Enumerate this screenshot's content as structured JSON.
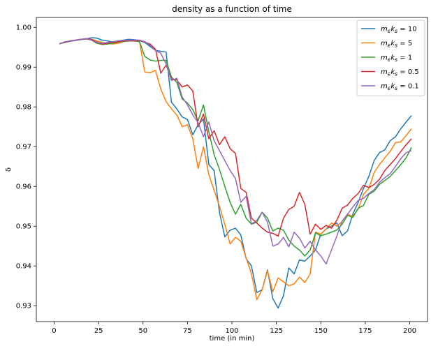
{
  "chart_data": {
    "type": "line",
    "title": "density as a function of time",
    "xlabel": "time (in min)",
    "ylabel": "δ",
    "xlim": [
      -10,
      210
    ],
    "ylim": [
      0.926,
      1.0025
    ],
    "xticks": [
      0,
      25,
      50,
      75,
      100,
      125,
      150,
      175,
      200
    ],
    "yticks": [
      0.93,
      0.94,
      0.95,
      0.96,
      0.97,
      0.98,
      0.99,
      1.0
    ],
    "ytick_labels": [
      "0.93",
      "0.94",
      "0.95",
      "0.96",
      "0.97",
      "0.98",
      "0.99",
      "1.00"
    ],
    "grid": false,
    "legend_position": "top-right",
    "x": [
      3,
      6,
      9,
      12,
      15,
      18,
      21,
      24,
      27,
      30,
      33,
      36,
      39,
      42,
      45,
      48,
      51,
      54,
      57,
      60,
      63,
      66,
      69,
      72,
      75,
      78,
      81,
      84,
      87,
      90,
      93,
      96,
      99,
      102,
      105,
      108,
      111,
      114,
      117,
      120,
      123,
      126,
      129,
      132,
      135,
      138,
      141,
      144,
      147,
      150,
      153,
      156,
      159,
      162,
      165,
      168,
      171,
      174,
      177,
      180,
      183,
      186,
      189,
      192,
      195,
      198,
      201
    ],
    "series": [
      {
        "name_prefix": "m",
        "name_sub1": "ϵ",
        "name_mid": "k",
        "name_sub2": "s",
        "name_value": " = 10",
        "color": "#1f77b4",
        "values": [
          0.9959,
          0.9962,
          0.9965,
          0.9967,
          0.9969,
          0.9971,
          0.9974,
          0.9973,
          0.9968,
          0.9966,
          0.9963,
          0.9966,
          0.9968,
          0.997,
          0.9969,
          0.9967,
          0.9962,
          0.9952,
          0.9942,
          0.994,
          0.9938,
          0.9812,
          0.9795,
          0.9775,
          0.9768,
          0.973,
          0.9755,
          0.977,
          0.9655,
          0.964,
          0.9535,
          0.9473,
          0.949,
          0.9495,
          0.9478,
          0.9418,
          0.94,
          0.9333,
          0.934,
          0.939,
          0.9318,
          0.9294,
          0.9325,
          0.9395,
          0.938,
          0.9415,
          0.9412,
          0.9425,
          0.944,
          0.948,
          0.9493,
          0.95,
          0.9508,
          0.9476,
          0.9488,
          0.953,
          0.956,
          0.9595,
          0.9625,
          0.9665,
          0.9685,
          0.9692,
          0.9715,
          0.9725,
          0.9745,
          0.9762,
          0.9778
        ]
      },
      {
        "name_prefix": "m",
        "name_sub1": "ϵ",
        "name_mid": "k",
        "name_sub2": "s",
        "name_value": " = 5",
        "color": "#ff7f0e",
        "values": [
          0.9959,
          0.9962,
          0.9966,
          0.9968,
          0.997,
          0.9971,
          0.997,
          0.9966,
          0.9962,
          0.996,
          0.9958,
          0.996,
          0.9964,
          0.9966,
          0.9966,
          0.9965,
          0.9888,
          0.9886,
          0.9892,
          0.9845,
          0.9813,
          0.9795,
          0.978,
          0.975,
          0.9755,
          0.972,
          0.9645,
          0.97,
          0.963,
          0.959,
          0.955,
          0.9505,
          0.9455,
          0.9472,
          0.9462,
          0.942,
          0.938,
          0.9315,
          0.934,
          0.9388,
          0.9335,
          0.937,
          0.936,
          0.935,
          0.9355,
          0.9372,
          0.9358,
          0.938,
          0.9485,
          0.948,
          0.9493,
          0.9508,
          0.95,
          0.9512,
          0.953,
          0.9525,
          0.9543,
          0.958,
          0.9595,
          0.9635,
          0.9655,
          0.9672,
          0.9688,
          0.971,
          0.9712,
          0.9728,
          0.9745
        ]
      },
      {
        "name_prefix": "m",
        "name_sub1": "ϵ",
        "name_mid": "k",
        "name_sub2": "s",
        "name_value": " = 1",
        "color": "#2ca02c",
        "values": [
          0.9959,
          0.9962,
          0.9965,
          0.9968,
          0.997,
          0.9971,
          0.9968,
          0.996,
          0.9957,
          0.9958,
          0.996,
          0.9963,
          0.9965,
          0.9966,
          0.9966,
          0.9964,
          0.9927,
          0.9918,
          0.9915,
          0.9917,
          0.9917,
          0.9875,
          0.9862,
          0.982,
          0.981,
          0.9793,
          0.9765,
          0.9805,
          0.9738,
          0.968,
          0.9643,
          0.96,
          0.956,
          0.953,
          0.9555,
          0.952,
          0.9505,
          0.951,
          0.9535,
          0.952,
          0.9488,
          0.9495,
          0.949,
          0.9465,
          0.945,
          0.944,
          0.9425,
          0.944,
          0.9483,
          0.9476,
          0.948,
          0.9485,
          0.949,
          0.9505,
          0.9527,
          0.9522,
          0.9545,
          0.9552,
          0.958,
          0.9588,
          0.9605,
          0.9615,
          0.9625,
          0.964,
          0.9655,
          0.9672,
          0.9698
        ]
      },
      {
        "name_prefix": "m",
        "name_sub1": "ϵ",
        "name_mid": "k",
        "name_sub2": "s",
        "name_value": " = 0.5",
        "color": "#d62728",
        "values": [
          0.9959,
          0.9963,
          0.9966,
          0.9968,
          0.997,
          0.9971,
          0.997,
          0.9963,
          0.9958,
          0.996,
          0.9962,
          0.9964,
          0.9966,
          0.9967,
          0.9966,
          0.9967,
          0.9963,
          0.9958,
          0.9945,
          0.9885,
          0.9905,
          0.987,
          0.9868,
          0.985,
          0.9855,
          0.984,
          0.975,
          0.9782,
          0.972,
          0.974,
          0.9705,
          0.9725,
          0.9695,
          0.9683,
          0.9595,
          0.9585,
          0.952,
          0.9508,
          0.9495,
          0.9485,
          0.9482,
          0.9475,
          0.952,
          0.9542,
          0.955,
          0.9585,
          0.9555,
          0.948,
          0.9505,
          0.9492,
          0.9502,
          0.9495,
          0.9515,
          0.9545,
          0.9553,
          0.957,
          0.9582,
          0.9603,
          0.9597,
          0.9605,
          0.9618,
          0.964,
          0.9655,
          0.967,
          0.9688,
          0.9705,
          0.972
        ]
      },
      {
        "name_prefix": "m",
        "name_sub1": "ϵ",
        "name_mid": "k",
        "name_sub2": "s",
        "name_value": " = 0.1",
        "color": "#9467bd",
        "values": [
          0.9958,
          0.9964,
          0.9965,
          0.9968,
          0.997,
          0.9972,
          0.9968,
          0.9962,
          0.996,
          0.9962,
          0.9964,
          0.9966,
          0.9967,
          0.9968,
          0.9968,
          0.9968,
          0.9964,
          0.9955,
          0.9942,
          0.9935,
          0.9908,
          0.9866,
          0.9872,
          0.9825,
          0.9805,
          0.978,
          0.976,
          0.9725,
          0.9762,
          0.9715,
          0.969,
          0.9665,
          0.964,
          0.962,
          0.956,
          0.9575,
          0.9505,
          0.9515,
          0.9535,
          0.951,
          0.945,
          0.9455,
          0.9472,
          0.9448,
          0.9485,
          0.947,
          0.9445,
          0.9462,
          0.944,
          0.9425,
          0.9405,
          0.944,
          0.9475,
          0.9513,
          0.953,
          0.9548,
          0.9565,
          0.957,
          0.9582,
          0.9592,
          0.961,
          0.9622,
          0.9632,
          0.965,
          0.967,
          0.9685,
          0.969
        ]
      }
    ]
  }
}
